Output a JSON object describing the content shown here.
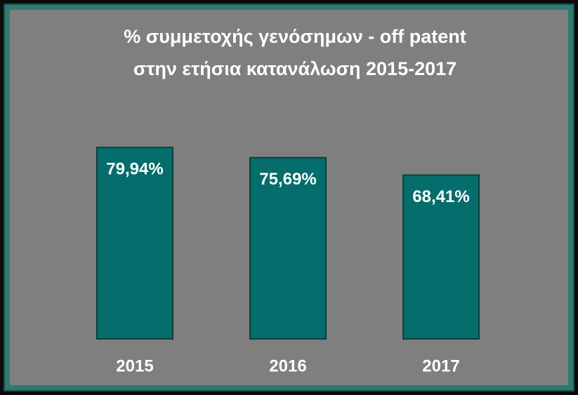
{
  "chart_data": {
    "type": "bar",
    "title": [
      "% συμμετοχής γενόσημων - off patent",
      "στην ετήσια κατανάλωση 2015-2017"
    ],
    "categories": [
      "2015",
      "2016",
      "2017"
    ],
    "values": [
      79.94,
      75.69,
      68.41
    ],
    "value_labels": [
      "79,94%",
      "75,69%",
      "68,41%"
    ],
    "color": "#056d6b",
    "ylim": [
      0,
      80
    ]
  }
}
